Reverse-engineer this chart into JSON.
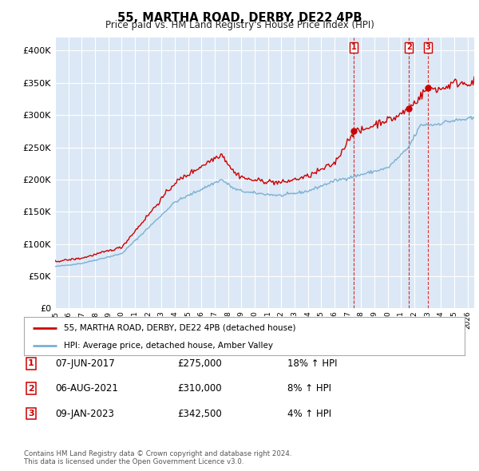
{
  "title": "55, MARTHA ROAD, DERBY, DE22 4PB",
  "subtitle": "Price paid vs. HM Land Registry's House Price Index (HPI)",
  "background_color": "#dce8f5",
  "hpi_color": "#7ab0d4",
  "price_color": "#cc0000",
  "ylim": [
    0,
    420000
  ],
  "yticks": [
    0,
    50000,
    100000,
    150000,
    200000,
    250000,
    300000,
    350000,
    400000
  ],
  "ytick_labels": [
    "£0",
    "£50K",
    "£100K",
    "£150K",
    "£200K",
    "£250K",
    "£300K",
    "£350K",
    "£400K"
  ],
  "transactions": [
    {
      "num": 1,
      "date": "07-JUN-2017",
      "price": 275000,
      "hpi_pct": "18%",
      "x_year": 2017.44
    },
    {
      "num": 2,
      "date": "06-AUG-2021",
      "price": 310000,
      "hpi_pct": "8%",
      "x_year": 2021.6
    },
    {
      "num": 3,
      "date": "09-JAN-2023",
      "price": 342500,
      "hpi_pct": "4%",
      "x_year": 2023.03
    }
  ],
  "legend_line1": "55, MARTHA ROAD, DERBY, DE22 4PB (detached house)",
  "legend_line2": "HPI: Average price, detached house, Amber Valley",
  "footer": "Contains HM Land Registry data © Crown copyright and database right 2024.\nThis data is licensed under the Open Government Licence v3.0.",
  "xmin": 1995.0,
  "xmax": 2026.5,
  "xtick_years": [
    1995,
    1996,
    1997,
    1998,
    1999,
    2000,
    2001,
    2002,
    2003,
    2004,
    2005,
    2006,
    2007,
    2008,
    2009,
    2010,
    2011,
    2012,
    2013,
    2014,
    2015,
    2016,
    2017,
    2018,
    2019,
    2020,
    2021,
    2022,
    2023,
    2024,
    2025,
    2026
  ]
}
